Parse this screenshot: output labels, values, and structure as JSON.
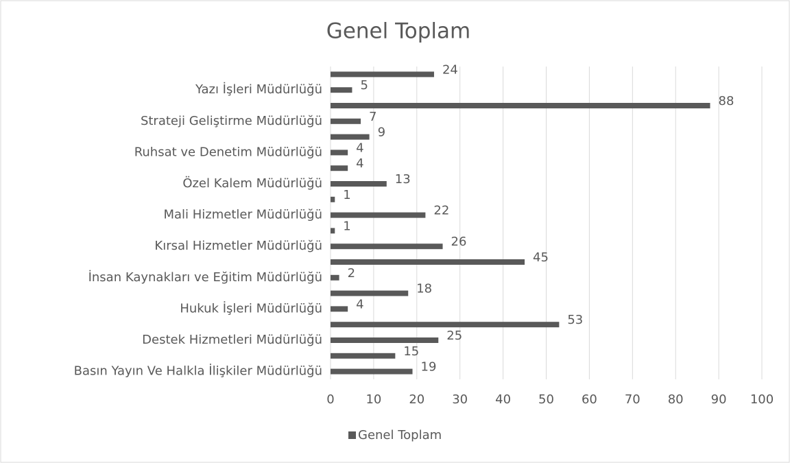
{
  "chart_data": {
    "type": "bar",
    "orientation": "horizontal",
    "title": "Genel Toplam",
    "categories": [
      "Basın Yayın Ve Halkla İlişkiler Müdürlüğü",
      null,
      "Destek Hizmetleri Müdürlüğü",
      null,
      "Hukuk İşleri Müdürlüğü",
      null,
      "İnsan Kaynakları ve Eğitim Müdürlüğü",
      null,
      "Kırsal Hizmetler Müdürlüğü",
      null,
      "Mali Hizmetler Müdürlüğü",
      null,
      "Özel Kalem Müdürlüğü",
      null,
      "Ruhsat ve Denetim Müdürlüğü",
      null,
      "Strateji Geliştirme Müdürlüğü",
      null,
      "Yazı İşleri Müdürlüğü",
      null
    ],
    "series": [
      {
        "name": "Genel Toplam",
        "color": "#595959",
        "values": [
          19,
          15,
          25,
          53,
          4,
          18,
          2,
          45,
          26,
          1,
          22,
          1,
          13,
          4,
          4,
          9,
          7,
          88,
          5,
          24
        ]
      }
    ],
    "xlim": [
      0,
      100
    ],
    "xticks": [
      0,
      10,
      20,
      30,
      40,
      50,
      60,
      70,
      80,
      90,
      100
    ],
    "grid": true,
    "legend": "bottom"
  }
}
